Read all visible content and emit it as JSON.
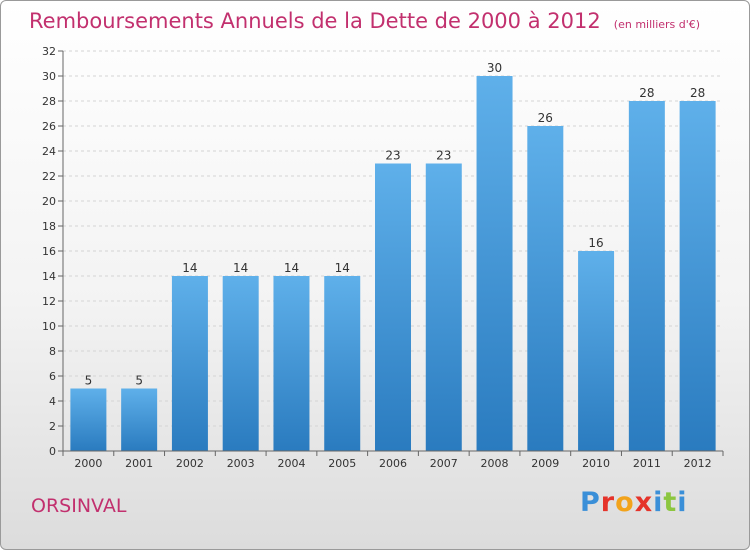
{
  "chart_data": {
    "type": "bar",
    "title": "Remboursements Annuels de la Dette de 2000 à 2012",
    "unit_note": "(en milliers d'€)",
    "categories": [
      "2000",
      "2001",
      "2002",
      "2003",
      "2004",
      "2005",
      "2006",
      "2007",
      "2008",
      "2009",
      "2010",
      "2011",
      "2012"
    ],
    "values": [
      5,
      5,
      14,
      14,
      14,
      14,
      23,
      23,
      30,
      26,
      16,
      28,
      28
    ],
    "ylim": [
      0,
      32
    ],
    "yticks": [
      "0",
      "2",
      "4",
      "6",
      "8",
      "10",
      "12",
      "14",
      "16",
      "18",
      "20",
      "22",
      "24",
      "26",
      "28",
      "30",
      "32"
    ],
    "grid": true,
    "bar_color_top": "#5fb0ea",
    "bar_color_bottom": "#2a7bbf"
  },
  "footer": {
    "commune": "ORSINVAL",
    "logo_letters": [
      {
        "ch": "P",
        "color": "#3a8fd8"
      },
      {
        "ch": "r",
        "color": "#e5332a"
      },
      {
        "ch": "o",
        "color": "#f2a31b"
      },
      {
        "ch": "x",
        "color": "#e5332a"
      },
      {
        "ch": "i",
        "color": "#3a8fd8"
      },
      {
        "ch": "t",
        "color": "#8cc63f"
      },
      {
        "ch": "i",
        "color": "#3a8fd8"
      }
    ]
  }
}
